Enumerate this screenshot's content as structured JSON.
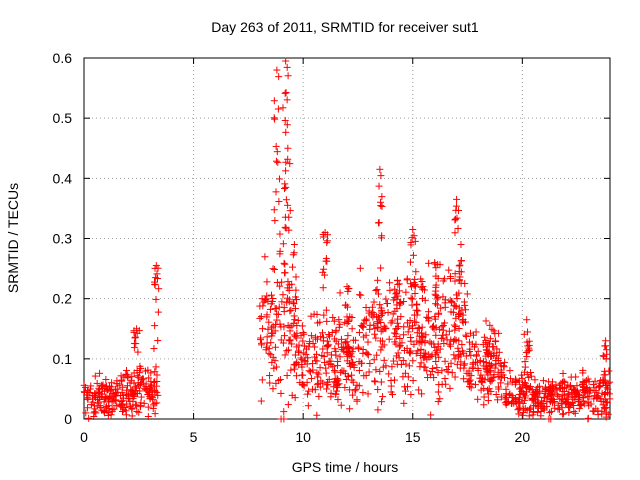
{
  "chart_data": {
    "type": "scatter",
    "title": "Day 263 of 2011, SRMTID for receiver sut1",
    "xlabel": "GPS time / hours",
    "ylabel": "SRMTID / TECUs",
    "xlim": [
      0,
      24
    ],
    "ylim": [
      0,
      0.6
    ],
    "xticks": [
      0,
      5,
      10,
      15,
      20
    ],
    "yticks": [
      0,
      0.1,
      0.2,
      0.3,
      0.4,
      0.5,
      0.6
    ],
    "xtick_labels": [
      "0",
      "5",
      "10",
      "15",
      "20"
    ],
    "ytick_labels": [
      "0",
      "0.1",
      "0.2",
      "0.3",
      "0.4",
      "0.5",
      "0.6"
    ],
    "grid": true,
    "marker": "plus",
    "color": "#ff0000",
    "series": [
      {
        "name": "SRMTID",
        "segments": [
          {
            "x_range": [
              0,
              1.5
            ],
            "baseline": 0.035,
            "spread": 0.03
          },
          {
            "x_range": [
              1.5,
              3.4
            ],
            "baseline": 0.045,
            "spread": 0.04
          },
          {
            "x_range": [
              8.0,
              9.6
            ],
            "baseline": 0.15,
            "spread": 0.12
          },
          {
            "x_range": [
              9.6,
              12.5
            ],
            "baseline": 0.1,
            "spread": 0.08
          },
          {
            "x_range": [
              12.5,
              17.5
            ],
            "baseline": 0.14,
            "spread": 0.1
          },
          {
            "x_range": [
              17.5,
              19.2
            ],
            "baseline": 0.09,
            "spread": 0.06
          },
          {
            "x_range": [
              19.2,
              24
            ],
            "baseline": 0.04,
            "spread": 0.035
          }
        ],
        "peaks": [
          {
            "x": 2.4,
            "y": 0.15
          },
          {
            "x": 3.3,
            "y": 0.255
          },
          {
            "x": 8.8,
            "y": 0.58
          },
          {
            "x": 9.2,
            "y": 0.595
          },
          {
            "x": 9.3,
            "y": 0.45
          },
          {
            "x": 9.6,
            "y": 0.29
          },
          {
            "x": 11.0,
            "y": 0.31
          },
          {
            "x": 12.0,
            "y": 0.22
          },
          {
            "x": 13.5,
            "y": 0.415
          },
          {
            "x": 14.3,
            "y": 0.23
          },
          {
            "x": 15.0,
            "y": 0.315
          },
          {
            "x": 16.0,
            "y": 0.26
          },
          {
            "x": 17.0,
            "y": 0.365
          },
          {
            "x": 17.2,
            "y": 0.29
          },
          {
            "x": 18.4,
            "y": 0.12
          },
          {
            "x": 20.2,
            "y": 0.165
          },
          {
            "x": 23.8,
            "y": 0.13
          }
        ]
      }
    ]
  }
}
